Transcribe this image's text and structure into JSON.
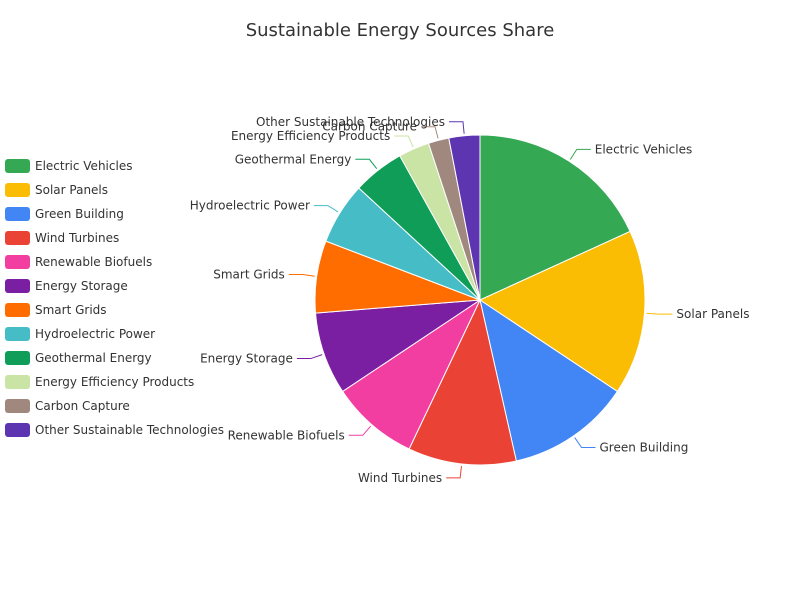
{
  "chart_data": {
    "type": "pie",
    "title": "Sustainable Energy Sources Share",
    "legend_position": "left",
    "slices": [
      {
        "label": "Electric Vehicles",
        "value": 18,
        "color": "#34a853"
      },
      {
        "label": "Solar Panels",
        "value": 16,
        "color": "#fbbc04"
      },
      {
        "label": "Green Building",
        "value": 12,
        "color": "#4285f4"
      },
      {
        "label": "Wind Turbines",
        "value": 10.5,
        "color": "#ea4335"
      },
      {
        "label": "Renewable Biofuels",
        "value": 8.5,
        "color": "#f23ea0"
      },
      {
        "label": "Energy Storage",
        "value": 8,
        "color": "#7b1fa2"
      },
      {
        "label": "Smart Grids",
        "value": 7,
        "color": "#ff6d00"
      },
      {
        "label": "Hydroelectric Power",
        "value": 6,
        "color": "#46bdc6"
      },
      {
        "label": "Geothermal Energy",
        "value": 5,
        "color": "#0f9d58"
      },
      {
        "label": "Energy Efficiency Products",
        "value": 3,
        "color": "#c9e4a5"
      },
      {
        "label": "Carbon Capture",
        "value": 2,
        "color": "#a1887f"
      },
      {
        "label": "Other Sustainable Technologies",
        "value": 3,
        "color": "#5e35b1"
      }
    ]
  }
}
